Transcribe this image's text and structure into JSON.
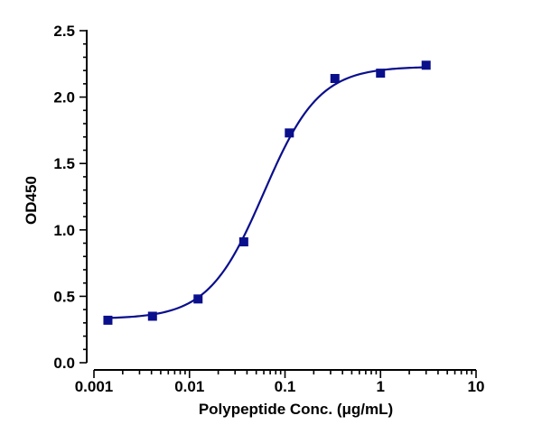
{
  "chart_data": {
    "type": "scatter",
    "title": "",
    "xlabel": "Polypeptide Conc. (μg/mL)",
    "ylabel": "OD450",
    "x_scale": "log",
    "xlim": [
      0.001,
      10
    ],
    "ylim": [
      0.0,
      2.5
    ],
    "x_ticks": [
      "0.001",
      "0.01",
      "0.1",
      "1",
      "10"
    ],
    "y_ticks": [
      "0.0",
      "0.5",
      "1.0",
      "1.5",
      "2.0",
      "2.5"
    ],
    "grid": false,
    "legend": "none",
    "series_color": "#0a0f8c",
    "series": [
      {
        "x": [
          0.0014,
          0.0041,
          0.0123,
          0.037,
          0.111,
          0.333,
          1.0,
          3.0
        ],
        "y": [
          0.32,
          0.35,
          0.48,
          0.91,
          1.73,
          2.14,
          2.18,
          2.24
        ]
      }
    ],
    "fit_curve": {
      "type": "4PL sigmoid",
      "bottom": 0.33,
      "top": 2.23,
      "ec50": 0.06,
      "hill": 1.5
    }
  }
}
